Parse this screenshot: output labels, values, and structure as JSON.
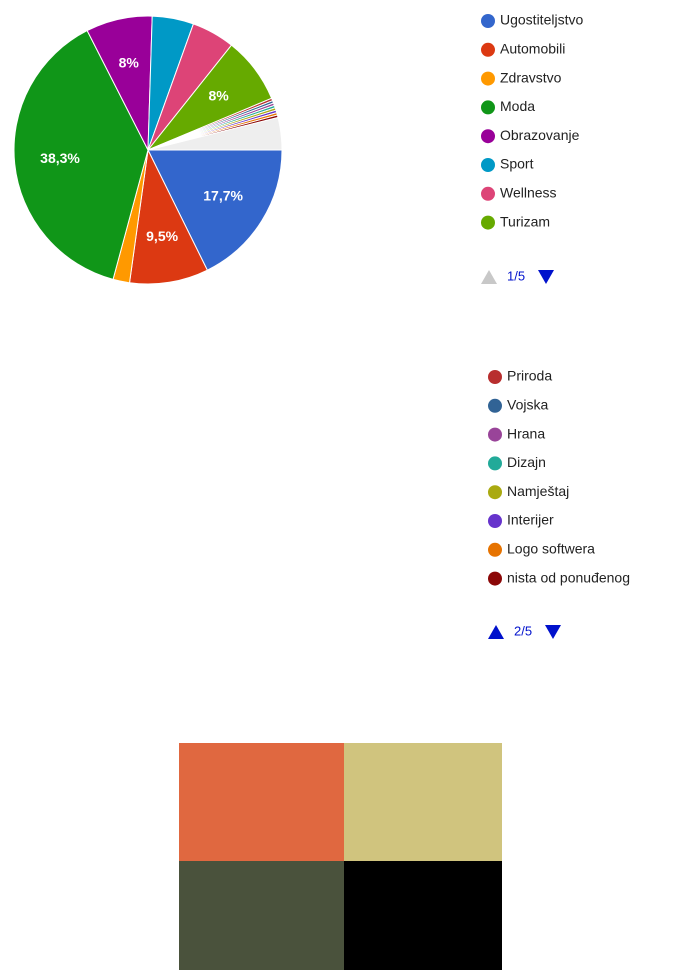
{
  "chart_data": {
    "type": "pie",
    "categories": [
      "Ugostiteljstvo",
      "Automobili",
      "Zdravstvo",
      "Moda",
      "Obrazovanje",
      "Sport",
      "Wellness",
      "Turizam",
      "Priroda",
      "Vojska",
      "Hrana",
      "Dizajn",
      "Namještaj",
      "Interijer",
      "Logo softwera",
      "nista od ponuđenog",
      null
    ],
    "values": [
      17.7,
      9.5,
      2,
      38.3,
      8,
      5,
      5.2,
      8,
      0.3,
      0.3,
      0.3,
      0.3,
      0.3,
      0.3,
      0.3,
      0.3,
      3.9
    ],
    "value_labels": [
      "17,7%",
      "9,5%",
      null,
      "38,3%",
      "8%",
      null,
      null,
      "8%",
      null,
      null,
      null,
      null,
      null,
      null,
      null,
      null,
      null
    ],
    "colors": [
      "#3366cc",
      "#dc3912",
      "#ff9900",
      "#109618",
      "#990099",
      "#0099c6",
      "#dd4477",
      "#66aa00",
      "#b82e2e",
      "#316395",
      "#994499",
      "#22aa99",
      "#aaaa11",
      "#6633cc",
      "#e67300",
      "#8b0707",
      "#eeeeee"
    ]
  },
  "legend_pages": [
    "1/5",
    "2/5"
  ]
}
